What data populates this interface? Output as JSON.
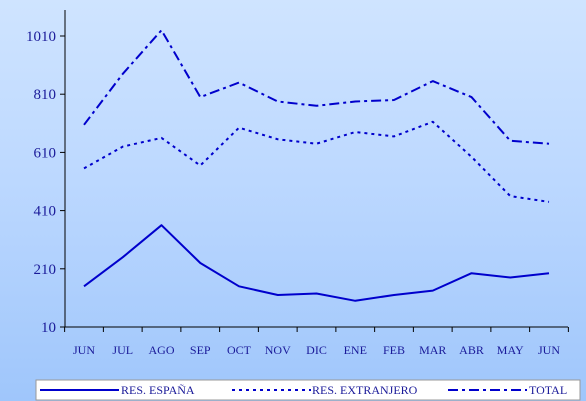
{
  "colors": {
    "series": "#0000cc",
    "axis": "#000000",
    "text": "#1a1a99",
    "legend_bg": "#ffffff"
  },
  "chart_data": {
    "type": "line",
    "title": "",
    "xlabel": "",
    "ylabel": "",
    "categories": [
      "JUN",
      "JUL",
      "AGO",
      "SEP",
      "OCT",
      "NOV",
      "DIC",
      "ENE",
      "FEB",
      "MAR",
      "ABR",
      "MAY",
      "JUN"
    ],
    "yticks": [
      10,
      210,
      410,
      610,
      810,
      1010
    ],
    "ylim": [
      10,
      1100
    ],
    "grid": false,
    "legend_position": "bottom",
    "series": [
      {
        "name": "RES. ESPAÑA",
        "dash": "solid",
        "values": [
          150,
          250,
          360,
          230,
          150,
          120,
          125,
          100,
          120,
          135,
          195,
          180,
          195
        ]
      },
      {
        "name": "RES. EXTRANJERO",
        "dash": "dotted",
        "values": [
          555,
          630,
          660,
          565,
          695,
          655,
          640,
          680,
          665,
          715,
          595,
          460,
          440
        ]
      },
      {
        "name": "TOTAL",
        "dash": "dashdot",
        "values": [
          705,
          880,
          1030,
          800,
          850,
          785,
          770,
          785,
          790,
          855,
          800,
          650,
          640
        ]
      }
    ]
  }
}
